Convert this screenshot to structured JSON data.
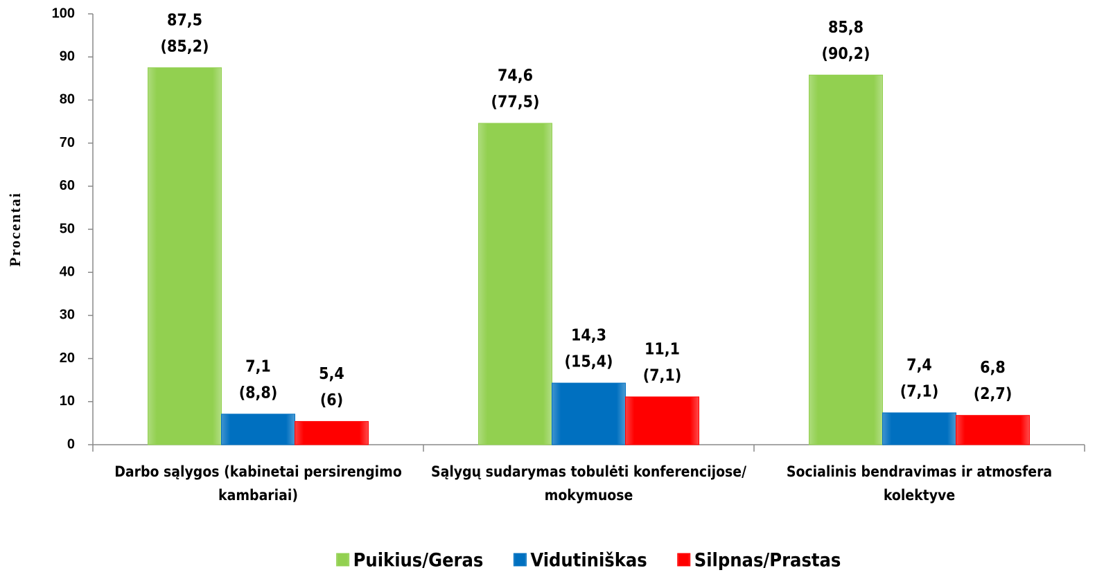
{
  "chart_data": {
    "type": "bar",
    "y_axis_label": "Procentai",
    "categories": [
      "Darbo sąlygos (kabinetai persirengimo\nkambariai)",
      "Sąlygų sudarymas tobulėti konferencijose/\nmokymuose",
      "Socialinis bendravimas ir atmosfera\nkolektyve"
    ],
    "series": [
      {
        "name": "Puikius/Geras",
        "color": "#92d050",
        "values": [
          87.5,
          74.6,
          85.8
        ],
        "value_labels": [
          "87,5",
          "74,6",
          "85,8"
        ],
        "comparison_labels": [
          "(85,2)",
          "(77,5)",
          "(90,2)"
        ]
      },
      {
        "name": "Vidutiniškas",
        "color": "#0070c0",
        "values": [
          7.1,
          14.3,
          7.4
        ],
        "value_labels": [
          "7,1",
          "14,3",
          "7,4"
        ],
        "comparison_labels": [
          "(8,8)",
          "(15,4)",
          "(7,1)"
        ]
      },
      {
        "name": "Silpnas/Prastas",
        "color": "#ff0000",
        "values": [
          5.4,
          11.1,
          6.8
        ],
        "value_labels": [
          "5,4",
          "11,1",
          "6,8"
        ],
        "comparison_labels": [
          "(6)",
          "(7,1)",
          "(2,7)"
        ]
      }
    ],
    "ylim": [
      0,
      100
    ],
    "yticks": [
      0,
      10,
      20,
      30,
      40,
      50,
      60,
      70,
      80,
      90,
      100
    ],
    "grid": false,
    "legend": "bottom"
  }
}
